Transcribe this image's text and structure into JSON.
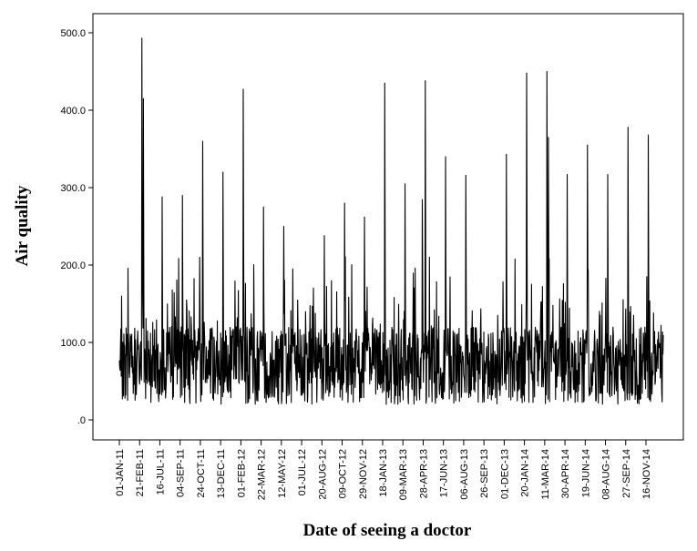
{
  "chart_data": {
    "type": "line",
    "xlabel": "Date of seeing a doctor",
    "ylabel": "Air quality",
    "ylim": [
      0,
      500
    ],
    "y_ticks": [
      0,
      100,
      200,
      300,
      400,
      500
    ],
    "y_tick_labels": [
      ".0",
      "100.0",
      "200.0",
      "300.0",
      "400.0",
      "500.0"
    ],
    "x_tick_labels": [
      "01-JAN-11",
      "21-FEB-11",
      "16-JUL-11",
      "04-SEP-11",
      "24-OCT-11",
      "13-DEC-11",
      "01-FEB-12",
      "22-MAR-12",
      "12-MAY-12",
      "01-JUL-12",
      "20-AUG-12",
      "09-OCT-12",
      "29-NOV-12",
      "18-JAN-13",
      "09-MAR-13",
      "28-APR-13",
      "17-JUN-13",
      "06-AUG-13",
      "26-SEP-13",
      "01-DEC-13",
      "20-JAN-14",
      "11-MAR-14",
      "30-APR-14",
      "19-JUN-14",
      "08-AUG-14",
      "27-SEP-14",
      "16-NOV-14"
    ],
    "grid": false,
    "legend": "none",
    "series": [
      {
        "color": "#000000",
        "peaks": [
          {
            "x": "01-JAN-11",
            "y": 160
          },
          {
            "x": "21-FEB-11",
            "y": 493
          },
          {
            "x": "21-FEB-11",
            "y": 415
          },
          {
            "x": "16-JUL-11",
            "y": 288
          },
          {
            "x": "04-SEP-11",
            "y": 290
          },
          {
            "x": "24-OCT-11",
            "y": 360
          },
          {
            "x": "13-DEC-11",
            "y": 320
          },
          {
            "x": "01-FEB-12",
            "y": 427
          },
          {
            "x": "22-MAR-12",
            "y": 275
          },
          {
            "x": "12-MAY-12",
            "y": 250
          },
          {
            "x": "20-AUG-12",
            "y": 238
          },
          {
            "x": "09-OCT-12",
            "y": 280
          },
          {
            "x": "29-NOV-12",
            "y": 262
          },
          {
            "x": "18-JAN-13",
            "y": 435
          },
          {
            "x": "09-MAR-13",
            "y": 305
          },
          {
            "x": "28-APR-13",
            "y": 438
          },
          {
            "x": "17-JUN-13",
            "y": 340
          },
          {
            "x": "06-AUG-13",
            "y": 316
          },
          {
            "x": "01-DEC-13",
            "y": 343
          },
          {
            "x": "20-JAN-14",
            "y": 448
          },
          {
            "x": "11-MAR-14",
            "y": 450
          },
          {
            "x": "11-MAR-14",
            "y": 365
          },
          {
            "x": "30-APR-14",
            "y": 317
          },
          {
            "x": "19-JUN-14",
            "y": 355
          },
          {
            "x": "08-AUG-14",
            "y": 317
          },
          {
            "x": "27-SEP-14",
            "y": 378
          },
          {
            "x": "16-NOV-14",
            "y": 368
          }
        ]
      }
    ]
  }
}
